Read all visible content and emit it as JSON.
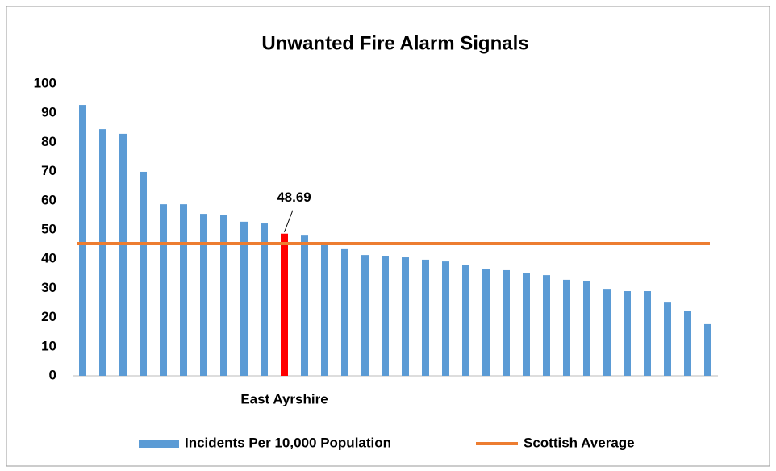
{
  "chart_data": {
    "type": "bar",
    "title": "Unwanted Fire Alarm Signals",
    "categories": [
      null,
      null,
      null,
      null,
      null,
      null,
      null,
      null,
      null,
      null,
      "East Ayrshire",
      null,
      null,
      null,
      null,
      null,
      null,
      null,
      null,
      null,
      null,
      null,
      null,
      null,
      null,
      null,
      null,
      null,
      null,
      null,
      null,
      null
    ],
    "series": [
      {
        "name": "Incidents Per 10,000 Population",
        "color": "#5b9bd5",
        "values": [
          92.8,
          84.5,
          82.9,
          69.9,
          58.8,
          58.8,
          55.5,
          55.2,
          52.8,
          52.2,
          48.69,
          48.3,
          45.3,
          43.4,
          41.4,
          40.9,
          40.6,
          39.8,
          39.2,
          38.1,
          36.5,
          36.2,
          35.1,
          34.5,
          32.9,
          32.6,
          29.8,
          29.0,
          29.0,
          25.1,
          22.1,
          17.7
        ]
      }
    ],
    "highlight": {
      "index": 10,
      "color": "#ff0000",
      "labeled": true
    },
    "average": {
      "name": "Scottish Average",
      "color": "#ed7d31",
      "value": 45.3
    },
    "ylim": [
      0,
      100
    ],
    "yticks": [
      0,
      10,
      20,
      30,
      40,
      50,
      60,
      70,
      80,
      90,
      100
    ],
    "grid": false,
    "legend": "bottom"
  }
}
